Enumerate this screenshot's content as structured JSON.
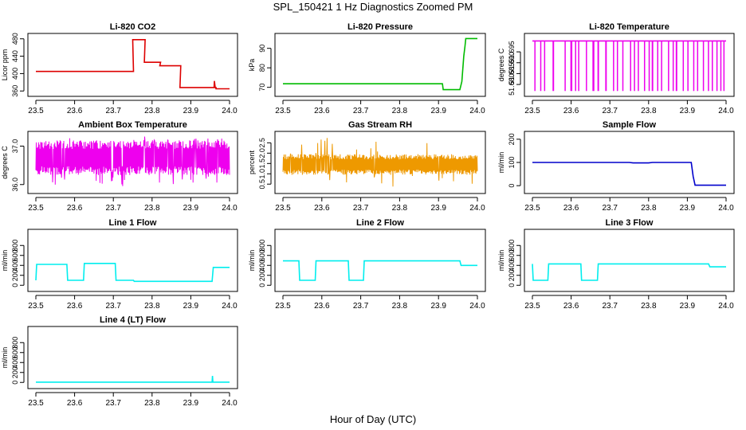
{
  "figure": {
    "title": "SPL_150421  1 Hz Diagnostics Zoomed PM",
    "xlabel": "Hour of Day (UTC)"
  },
  "chart_data": [
    {
      "id": "co2",
      "type": "line",
      "title": "Li-820 CO2",
      "ylabel": "Licor ppm",
      "xlim": [
        23.5,
        24.0
      ],
      "ylim": [
        355,
        485
      ],
      "xticks": [
        "23.5",
        "23.6",
        "23.7",
        "23.8",
        "23.9",
        "24.0"
      ],
      "xtick_values": [
        23.5,
        23.6,
        23.7,
        23.8,
        23.9,
        24.0
      ],
      "yticks": [
        "360",
        "400",
        "440",
        "480"
      ],
      "ytick_values": [
        360,
        400,
        440,
        480
      ],
      "color": "#dd0000",
      "series": [
        {
          "name": "CO2",
          "x": [
            23.5,
            23.75,
            23.752,
            23.75,
            23.78,
            23.782,
            23.78,
            23.82,
            23.822,
            23.82,
            23.872,
            23.874,
            23.872,
            23.96,
            23.961,
            23.963,
            23.965,
            23.965,
            24.0
          ],
          "y": [
            405,
            405,
            405,
            478,
            478,
            478,
            426,
            426,
            426,
            418,
            418,
            418,
            368,
            368,
            383,
            368,
            368,
            365,
            365
          ]
        }
      ]
    },
    {
      "id": "pressure",
      "type": "line",
      "title": "Li-820 Pressure",
      "ylabel": "kPa",
      "xlim": [
        23.5,
        24.0
      ],
      "ylim": [
        67,
        96
      ],
      "xticks": [
        "23.5",
        "23.6",
        "23.7",
        "23.8",
        "23.9",
        "24.0"
      ],
      "xtick_values": [
        23.5,
        23.6,
        23.7,
        23.8,
        23.9,
        24.0
      ],
      "yticks": [
        "70",
        "80",
        "90"
      ],
      "ytick_values": [
        70,
        80,
        90
      ],
      "color": "#00bb00",
      "series": [
        {
          "name": "Pressure",
          "x": [
            23.5,
            23.91,
            23.912,
            23.955,
            23.96,
            23.965,
            23.968,
            23.97,
            24.0
          ],
          "y": [
            71.8,
            71.8,
            68.8,
            68.8,
            73,
            86,
            91,
            95,
            95
          ]
        }
      ]
    },
    {
      "id": "licortemp",
      "type": "line",
      "title": "Li-820 Temperature",
      "ylabel": "degrees C",
      "xlim": [
        23.5,
        24.0
      ],
      "ylim": [
        51.676,
        51.702
      ],
      "xticks": [
        "23.5",
        "23.6",
        "23.7",
        "23.8",
        "23.9",
        "24.0"
      ],
      "xtick_values": [
        23.5,
        23.6,
        23.7,
        23.8,
        23.9,
        24.0
      ],
      "yticks": [
        "51.680",
        "51.685",
        "51.690",
        "51.695"
      ],
      "ytick_values": [
        51.68,
        51.685,
        51.69,
        51.695
      ],
      "color": "#ee00ee",
      "series": [
        {
          "name": "Temperature",
          "base": 51.7,
          "low": 51.677,
          "x_start": 23.5,
          "x_end": 24.0,
          "dips": [
            [
              23.505,
              23.508
            ],
            [
              23.52,
              23.522
            ],
            [
              23.53,
              23.532
            ],
            [
              23.552,
              23.556
            ],
            [
              23.583,
              23.585
            ],
            [
              23.598,
              23.603
            ],
            [
              23.61,
              23.612
            ],
            [
              23.618,
              23.62
            ],
            [
              23.638,
              23.64
            ],
            [
              23.655,
              23.66
            ],
            [
              23.668,
              23.672
            ],
            [
              23.688,
              23.692
            ],
            [
              23.708,
              23.71
            ],
            [
              23.718,
              23.72
            ],
            [
              23.732,
              23.735
            ],
            [
              23.752,
              23.755
            ],
            [
              23.762,
              23.764
            ],
            [
              23.772,
              23.775
            ],
            [
              23.788,
              23.79
            ],
            [
              23.8,
              23.802
            ],
            [
              23.808,
              23.812
            ],
            [
              23.822,
              23.824
            ],
            [
              23.832,
              23.835
            ],
            [
              23.85,
              23.852
            ],
            [
              23.862,
              23.864
            ],
            [
              23.87,
              23.874
            ],
            [
              23.888,
              23.89
            ],
            [
              23.9,
              23.903
            ],
            [
              23.915,
              23.918
            ],
            [
              23.925,
              23.928
            ],
            [
              23.94,
              23.942
            ],
            [
              23.953,
              23.955
            ],
            [
              23.963,
              23.966
            ],
            [
              23.975,
              23.978
            ],
            [
              23.985,
              23.987
            ],
            [
              23.993,
              23.996
            ]
          ]
        }
      ]
    },
    {
      "id": "boxtemp",
      "type": "line",
      "title": "Ambient Box Temperature",
      "ylabel": "degrees C",
      "xlim": [
        23.5,
        24.0
      ],
      "ylim": [
        35.85,
        37.3
      ],
      "xticks": [
        "23.5",
        "23.6",
        "23.7",
        "23.8",
        "23.9",
        "24.0"
      ],
      "xtick_values": [
        23.5,
        23.6,
        23.7,
        23.8,
        23.9,
        24.0
      ],
      "yticks": [
        "36.0",
        "37.0"
      ],
      "ytick_values": [
        36.0,
        37.0
      ],
      "color": "#ee00ee",
      "series": [
        {
          "name": "Box Temperature",
          "noise": {
            "x_start": 23.5,
            "x_end": 24.0,
            "low": 36.25,
            "high": 37.15,
            "spike_low": 35.95,
            "spike_high": 37.25,
            "seed": 7
          }
        }
      ]
    },
    {
      "id": "rh",
      "type": "line",
      "title": "Gas Stream RH",
      "ylabel": "percent",
      "xlim": [
        23.5,
        24.0
      ],
      "ylim": [
        0.2,
        2.9
      ],
      "xticks": [
        "23.5",
        "23.6",
        "23.7",
        "23.8",
        "23.9",
        "24.0"
      ],
      "xtick_values": [
        23.5,
        23.6,
        23.7,
        23.8,
        23.9,
        24.0
      ],
      "yticks": [
        "0.5",
        "1.0",
        "1.5",
        "2.0",
        "2.5"
      ],
      "ytick_values": [
        0.5,
        1.0,
        1.5,
        2.0,
        2.5
      ],
      "color": "#ee9900",
      "series": [
        {
          "name": "RH",
          "noise": {
            "x_start": 23.5,
            "x_end": 24.0,
            "low": 0.95,
            "high": 1.95,
            "spike_low": 0.35,
            "spike_high": 2.75,
            "seed": 13
          }
        }
      ]
    },
    {
      "id": "sampleflow",
      "type": "line",
      "title": "Sample Flow",
      "ylabel": "ml/min",
      "xlim": [
        23.5,
        24.0
      ],
      "ylim": [
        -20,
        220
      ],
      "xticks": [
        "23.5",
        "23.6",
        "23.7",
        "23.8",
        "23.9",
        "24.0"
      ],
      "xtick_values": [
        23.5,
        23.6,
        23.7,
        23.8,
        23.9,
        24.0
      ],
      "yticks": [
        "0",
        "100",
        "200"
      ],
      "ytick_values": [
        0,
        100,
        200
      ],
      "color": "#0000cc",
      "series": [
        {
          "name": "Sample Flow",
          "x": [
            23.5,
            23.75,
            23.76,
            23.8,
            23.81,
            23.91,
            23.915,
            23.92,
            24.0
          ],
          "y": [
            100,
            100,
            98,
            98,
            100,
            100,
            40,
            2,
            2
          ]
        }
      ]
    },
    {
      "id": "line1",
      "type": "line",
      "title": "Line 1 Flow",
      "ylabel": "ml/min",
      "xlim": [
        23.5,
        24.0
      ],
      "ylim": [
        -60,
        1060
      ],
      "xticks": [
        "23.5",
        "23.6",
        "23.7",
        "23.8",
        "23.9",
        "24.0"
      ],
      "xtick_values": [
        23.5,
        23.6,
        23.7,
        23.8,
        23.9,
        24.0
      ],
      "yticks": [
        "0",
        "200",
        "400",
        "600",
        "800"
      ],
      "ytick_values": [
        0,
        200,
        400,
        600,
        800
      ],
      "color": "#00eeee",
      "series": [
        {
          "name": "Line 1",
          "x": [
            23.5,
            23.502,
            23.58,
            23.582,
            23.623,
            23.625,
            23.705,
            23.707,
            23.752,
            23.754,
            23.955,
            23.958,
            24.0
          ],
          "y": [
            100,
            420,
            420,
            100,
            100,
            440,
            440,
            100,
            100,
            80,
            80,
            360,
            360
          ]
        }
      ]
    },
    {
      "id": "line2",
      "type": "line",
      "title": "Line 2 Flow",
      "ylabel": "ml/min",
      "xlim": [
        23.5,
        24.0
      ],
      "ylim": [
        -60,
        1060
      ],
      "xticks": [
        "23.5",
        "23.6",
        "23.7",
        "23.8",
        "23.9",
        "24.0"
      ],
      "xtick_values": [
        23.5,
        23.6,
        23.7,
        23.8,
        23.9,
        24.0
      ],
      "yticks": [
        "0",
        "200",
        "400",
        "600",
        "800"
      ],
      "ytick_values": [
        0,
        200,
        400,
        600,
        800
      ],
      "color": "#00eeee",
      "series": [
        {
          "name": "Line 2",
          "x": [
            23.5,
            23.541,
            23.543,
            23.583,
            23.585,
            23.668,
            23.67,
            23.707,
            23.709,
            23.955,
            23.958,
            24.0
          ],
          "y": [
            490,
            490,
            100,
            100,
            490,
            490,
            100,
            100,
            490,
            490,
            400,
            400
          ]
        }
      ]
    },
    {
      "id": "line3",
      "type": "line",
      "title": "Line 3 Flow",
      "ylabel": "ml/min",
      "xlim": [
        23.5,
        24.0
      ],
      "ylim": [
        -60,
        1060
      ],
      "xticks": [
        "23.5",
        "23.6",
        "23.7",
        "23.8",
        "23.9",
        "24.0"
      ],
      "xtick_values": [
        23.5,
        23.6,
        23.7,
        23.8,
        23.9,
        24.0
      ],
      "yticks": [
        "0",
        "200",
        "400",
        "600",
        "800"
      ],
      "ytick_values": [
        0,
        200,
        400,
        600,
        800
      ],
      "color": "#00eeee",
      "series": [
        {
          "name": "Line 3",
          "x": [
            23.5,
            23.502,
            23.54,
            23.542,
            23.625,
            23.627,
            23.668,
            23.67,
            23.955,
            23.958,
            24.0
          ],
          "y": [
            430,
            100,
            100,
            430,
            430,
            100,
            100,
            430,
            430,
            370,
            370
          ]
        }
      ]
    },
    {
      "id": "line4",
      "type": "line",
      "title": "Line 4 (LT) Flow",
      "ylabel": "ml/min",
      "xlim": [
        23.5,
        24.0
      ],
      "ylim": [
        -60,
        1060
      ],
      "xticks": [
        "23.5",
        "23.6",
        "23.7",
        "23.8",
        "23.9",
        "24.0"
      ],
      "xtick_values": [
        23.5,
        23.6,
        23.7,
        23.8,
        23.9,
        24.0
      ],
      "yticks": [
        "0",
        "200",
        "400",
        "600",
        "800"
      ],
      "ytick_values": [
        0,
        200,
        400,
        600,
        800
      ],
      "color": "#00eeee",
      "series": [
        {
          "name": "Line 4",
          "x": [
            23.5,
            23.955,
            23.956,
            23.957,
            23.958,
            24.0
          ],
          "y": [
            5,
            5,
            130,
            5,
            5,
            5
          ]
        }
      ]
    }
  ]
}
